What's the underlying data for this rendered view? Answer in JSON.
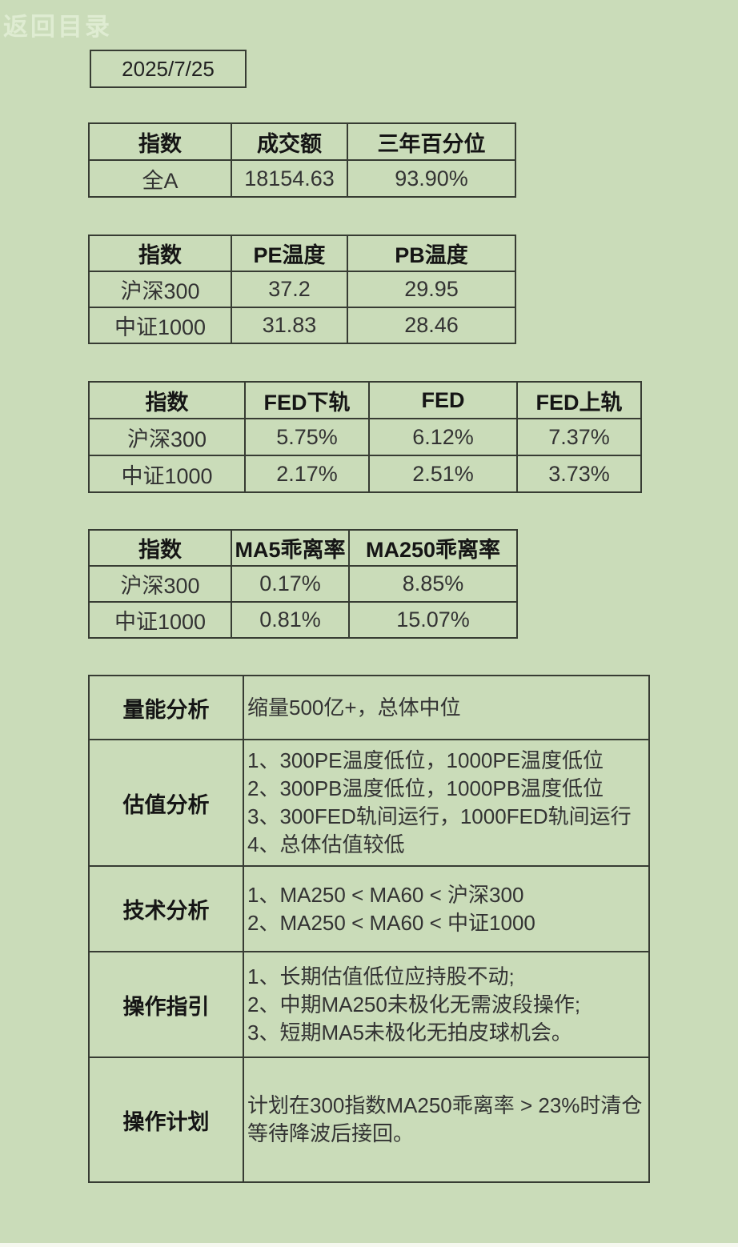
{
  "page": {
    "back_link_label": "返回目录",
    "date": "2025/7/25"
  },
  "tables": [
    {
      "name": "turnover",
      "headers": [
        "指数",
        "成交额",
        "三年百分位"
      ],
      "rows": [
        [
          "全A",
          "18154.63",
          "93.90%"
        ]
      ]
    },
    {
      "name": "pe-pb-temperature",
      "headers": [
        "指数",
        "PE温度",
        "PB温度"
      ],
      "rows": [
        [
          "沪深300",
          "37.2",
          "29.95"
        ],
        [
          "中证1000",
          "31.83",
          "28.46"
        ]
      ]
    },
    {
      "name": "fed-bands",
      "headers": [
        "指数",
        "FED下轨",
        "FED",
        "FED上轨"
      ],
      "rows": [
        [
          "沪深300",
          "5.75%",
          "6.12%",
          "7.37%"
        ],
        [
          "中证1000",
          "2.17%",
          "2.51%",
          "3.73%"
        ]
      ]
    },
    {
      "name": "ma-bias",
      "headers": [
        "指数",
        "MA5乖离率",
        "MA250乖离率"
      ],
      "rows": [
        [
          "沪深300",
          "0.17%",
          "8.85%"
        ],
        [
          "中证1000",
          "0.81%",
          "15.07%"
        ]
      ]
    }
  ],
  "analysis": [
    {
      "label": "量能分析",
      "lines": [
        "缩量500亿+，总体中位"
      ]
    },
    {
      "label": "估值分析",
      "lines": [
        "1、300PE温度低位，1000PE温度低位",
        "2、300PB温度低位，1000PB温度低位",
        "3、300FED轨间运行，1000FED轨间运行",
        "4、总体估值较低"
      ]
    },
    {
      "label": "技术分析",
      "lines": [
        "1、MA250 < MA60 < 沪深300",
        "2、MA250 < MA60 < 中证1000"
      ]
    },
    {
      "label": "操作指引",
      "lines": [
        "1、长期估值低位应持股不动;",
        "2、中期MA250未极化无需波段操作;",
        "3、短期MA5未极化无拍皮球机会。"
      ]
    },
    {
      "label": "操作计划",
      "lines": [
        "计划在300指数MA250乖离率 > 23%时清仓",
        "等待降波后接回。"
      ]
    }
  ],
  "colors": {
    "background": "#cadcb9",
    "table_border": "#373c33",
    "header_text": "#151515",
    "data_text": "#333333",
    "back_link_text": "#dfecd2",
    "bottom_strip": "#f6f8f0"
  }
}
